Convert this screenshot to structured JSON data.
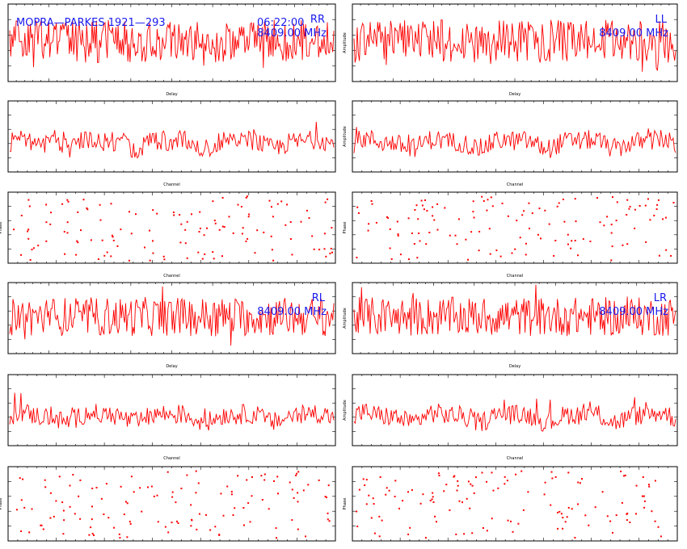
{
  "header": {
    "source": "MOPRA—PARKES 1921—293",
    "time": "06:22:00",
    "freq": "8409.00 MHz"
  },
  "colors": {
    "trace": "#ff0000",
    "label": "#1a1aee",
    "axis": "#000000"
  },
  "chart_data": [
    {
      "type": "line",
      "pol": "RR",
      "xlabel": "Delay",
      "ylabel": "",
      "show_freq": true
    },
    {
      "type": "line",
      "pol": "LL",
      "xlabel": "Delay",
      "ylabel": "Amplitude",
      "show_freq": true
    },
    {
      "type": "line",
      "xlabel": "Channel",
      "ylabel": ""
    },
    {
      "type": "line",
      "xlabel": "Channel",
      "ylabel": "Amplitude"
    },
    {
      "type": "scatter",
      "xlabel": "Channel",
      "ylabel": "Phase"
    },
    {
      "type": "scatter",
      "xlabel": "Channel",
      "ylabel": "Phase"
    },
    {
      "type": "line",
      "pol": "RL",
      "xlabel": "Delay",
      "ylabel": "",
      "show_freq": true
    },
    {
      "type": "line",
      "pol": "LR",
      "xlabel": "Delay",
      "ylabel": "Amplitude",
      "show_freq": true
    },
    {
      "type": "line",
      "xlabel": "Channel",
      "ylabel": ""
    },
    {
      "type": "line",
      "xlabel": "Channel",
      "ylabel": "Amplitude"
    },
    {
      "type": "scatter",
      "xlabel": "Channel",
      "ylabel": "Phase"
    },
    {
      "type": "scatter",
      "xlabel": "Channel",
      "ylabel": "Phase"
    }
  ]
}
